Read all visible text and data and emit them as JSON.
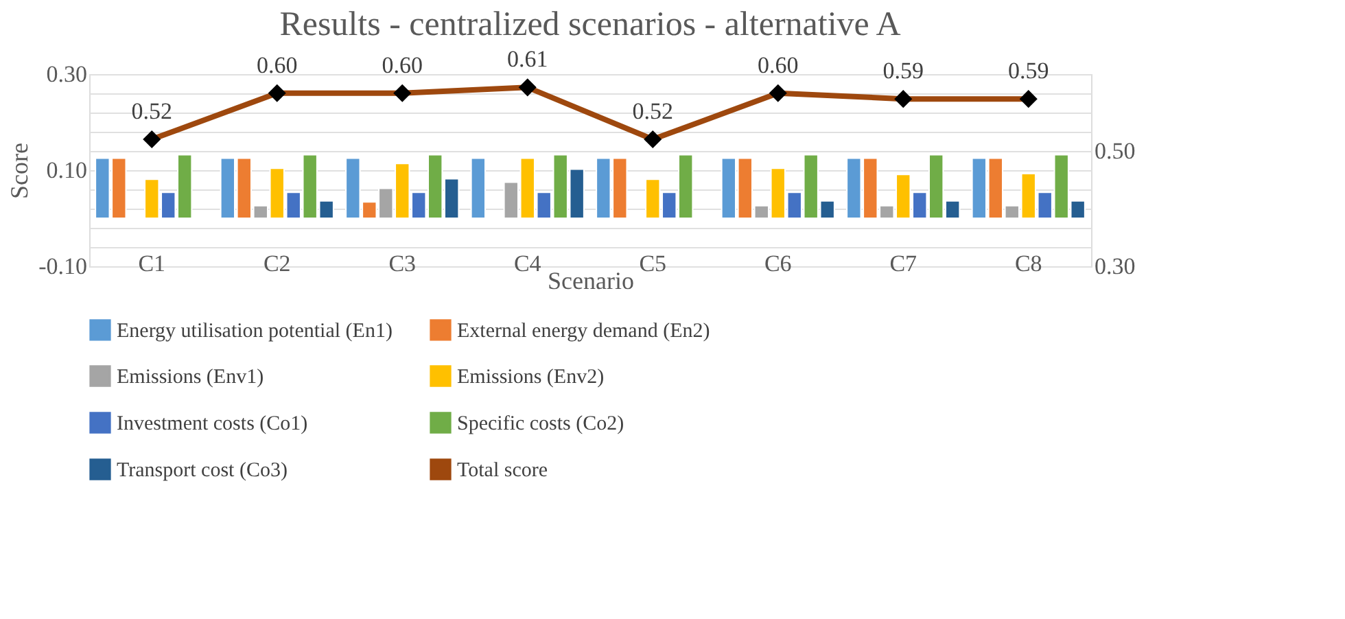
{
  "chart_data": {
    "type": "bar",
    "title": "Results - centralized scenarios - alternative A",
    "xlabel": "Scenario",
    "ylabel": "Score",
    "categories": [
      "C1",
      "C2",
      "C3",
      "C4",
      "C5",
      "C6",
      "C7",
      "C8"
    ],
    "series": [
      {
        "name": "Energy utilisation potential  (En1)",
        "color": "#5b9bd5",
        "values": [
          0.125,
          0.125,
          0.125,
          0.125,
          0.125,
          0.125,
          0.125,
          0.125
        ]
      },
      {
        "name": "External energy demand  (En2)",
        "color": "#ed7d31",
        "values": [
          0.125,
          0.125,
          0.034,
          null,
          0.125,
          0.125,
          0.125,
          0.125
        ]
      },
      {
        "name": "Emissions (Env1)",
        "color": "#a5a5a5",
        "values": [
          null,
          0.026,
          0.062,
          0.075,
          null,
          0.026,
          0.026,
          0.026
        ]
      },
      {
        "name": "Emissions (Env2)",
        "color": "#ffc000",
        "values": [
          0.081,
          0.104,
          0.114,
          0.125,
          0.081,
          0.104,
          0.091,
          0.093
        ]
      },
      {
        "name": "Investment costs (Co1)",
        "color": "#4472c4",
        "values": [
          0.054,
          0.054,
          0.054,
          0.054,
          0.054,
          0.054,
          0.054,
          0.054
        ]
      },
      {
        "name": "Specific costs (Co2)",
        "color": "#70ad47",
        "values": [
          0.132,
          0.132,
          0.132,
          0.132,
          0.132,
          0.132,
          0.132,
          0.132
        ]
      },
      {
        "name": "Transport cost (Co3)",
        "color": "#255e91",
        "values": [
          null,
          0.036,
          0.082,
          0.102,
          null,
          0.036,
          0.036,
          0.036
        ]
      },
      {
        "name": "Total score",
        "color": "#9e480e",
        "type": "line",
        "axis": "y2",
        "marker": "diamond",
        "values": [
          0.52,
          0.6,
          0.6,
          0.61,
          0.52,
          0.6,
          0.59,
          0.59
        ],
        "value_labels": [
          "0.52",
          "0.60",
          "0.60",
          "0.61",
          "0.52",
          "0.60",
          "0.59",
          "0.59"
        ]
      }
    ],
    "ylim": [
      -0.1,
      0.3
    ],
    "yticks": [
      {
        "value": -0.1,
        "label": "-0.10"
      },
      {
        "value": -0.06,
        "label": null
      },
      {
        "value": -0.02,
        "label": null
      },
      {
        "value": 0.02,
        "label": null
      },
      {
        "value": 0.06,
        "label": null
      },
      {
        "value": 0.1,
        "label": "0.10"
      },
      {
        "value": 0.14,
        "label": null
      },
      {
        "value": 0.18,
        "label": null
      },
      {
        "value": 0.22,
        "label": null
      },
      {
        "value": 0.26,
        "label": null
      },
      {
        "value": 0.3,
        "label": "0.30"
      }
    ],
    "y2lim": [
      0.3,
      0.633
    ],
    "y2ticks": [
      {
        "value": 0.3,
        "label": "0.30"
      },
      {
        "value": 0.5,
        "label": "0.50"
      }
    ],
    "grid": "y",
    "legend": "bottom"
  }
}
